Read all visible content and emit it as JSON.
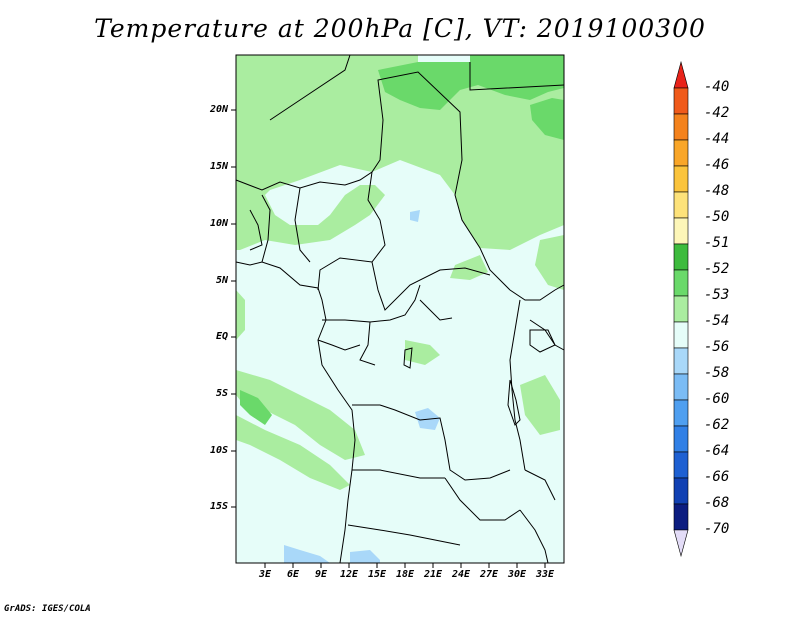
{
  "title": "Temperature at 200hPa [C], VT: 2019100300",
  "credit": "GrADS: IGES/COLA",
  "map": {
    "lat_labels": [
      "20N",
      "15N",
      "10N",
      "5N",
      "EQ",
      "5S",
      "10S",
      "15S"
    ],
    "lon_labels": [
      "3E",
      "6E",
      "9E",
      "12E",
      "15E",
      "18E",
      "21E",
      "24E",
      "27E",
      "30E",
      "33E"
    ]
  },
  "colorbar": {
    "labels": [
      "-40",
      "-42",
      "-44",
      "-46",
      "-48",
      "-50",
      "-51",
      "-52",
      "-53",
      "-54",
      "-56",
      "-58",
      "-60",
      "-62",
      "-64",
      "-66",
      "-68",
      "-70"
    ],
    "colors": [
      "#e8231a",
      "#f05a1a",
      "#f4821c",
      "#f9a628",
      "#fbc43c",
      "#fde27a",
      "#fdf6b8",
      "#3dbb3d",
      "#6ad96a",
      "#aaeda0",
      "#e6fdf9",
      "#a9d8f9",
      "#7bbcf5",
      "#4f9ff0",
      "#3180e6",
      "#1e60d2",
      "#1141b3",
      "#0c1d80",
      "#e3dcf7"
    ]
  },
  "colors": {
    "fill_lightgreen": "#aaeda0",
    "fill_green": "#6ad96a",
    "fill_base": "#e6fdf9",
    "fill_lightblue": "#a9d8f9",
    "fill_blue": "#7bbcf5"
  }
}
